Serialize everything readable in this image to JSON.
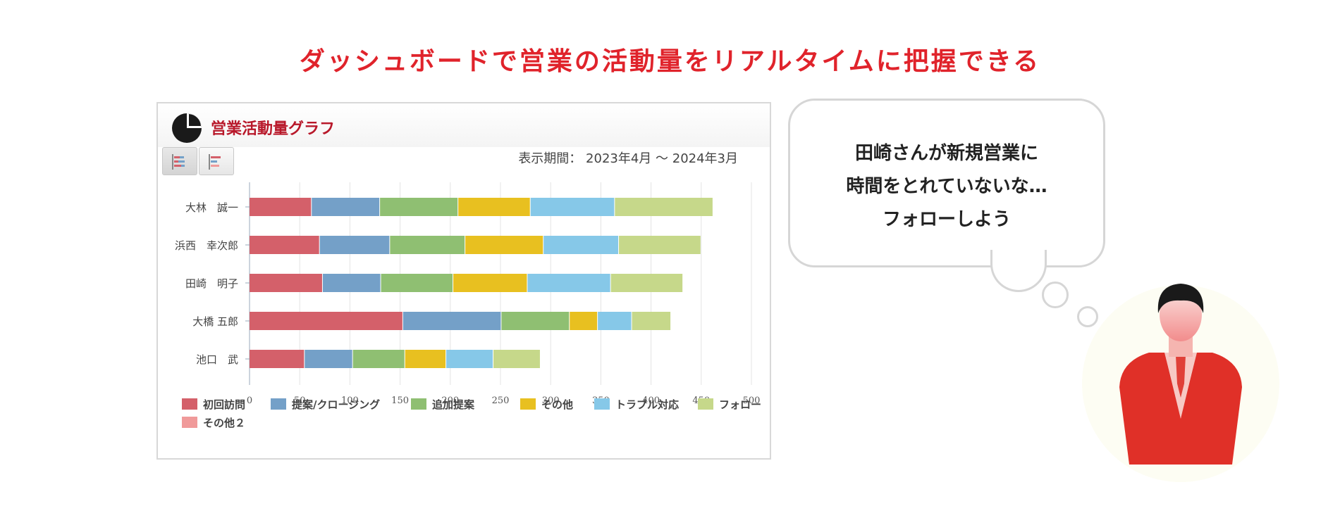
{
  "headline": "ダッシュボードで営業の活動量をリアルタイムに把握できる",
  "panel": {
    "title": "営業活動量グラフ",
    "period": "表示期間： 2023年4月 〜 2024年3月",
    "icons": [
      "pie-chart-icon",
      "horizontal-bar-icon",
      "horizontal-bar-alt-icon"
    ]
  },
  "speech": {
    "lines": [
      "田崎さんが新規営業に",
      "時間をとれていないな…",
      "フォローしよう"
    ]
  },
  "chart_data": {
    "type": "bar",
    "orientation": "horizontal",
    "stacked": true,
    "categories": [
      "大林　誠一",
      "浜西　幸次郎",
      "田崎　明子",
      "大橋 五郎",
      "池口　武"
    ],
    "series": [
      {
        "name": "初回訪問",
        "color": "#d4606a",
        "values": [
          62,
          70,
          73,
          153,
          55
        ]
      },
      {
        "name": "提案/クロージング",
        "color": "#74a0c8",
        "values": [
          68,
          70,
          58,
          98,
          48
        ]
      },
      {
        "name": "追加提案",
        "color": "#8fbf72",
        "values": [
          78,
          75,
          72,
          68,
          52
        ]
      },
      {
        "name": "その他",
        "color": "#e8c020",
        "values": [
          72,
          78,
          74,
          28,
          41
        ]
      },
      {
        "name": "トラブル対応",
        "color": "#86c8e8",
        "values": [
          84,
          75,
          83,
          34,
          47
        ]
      },
      {
        "name": "フォロー",
        "color": "#c6d88a",
        "values": [
          98,
          82,
          72,
          39,
          47
        ]
      },
      {
        "name": "その他２",
        "color": "#f09a9a",
        "values": [
          0,
          0,
          0,
          0,
          0
        ]
      }
    ],
    "xticks": [
      "0",
      "50",
      "100",
      "150",
      "200",
      "250",
      "300",
      "350",
      "400",
      "450",
      "500"
    ],
    "xlim": [
      0,
      500
    ],
    "grid": true,
    "legend": "bottom"
  }
}
